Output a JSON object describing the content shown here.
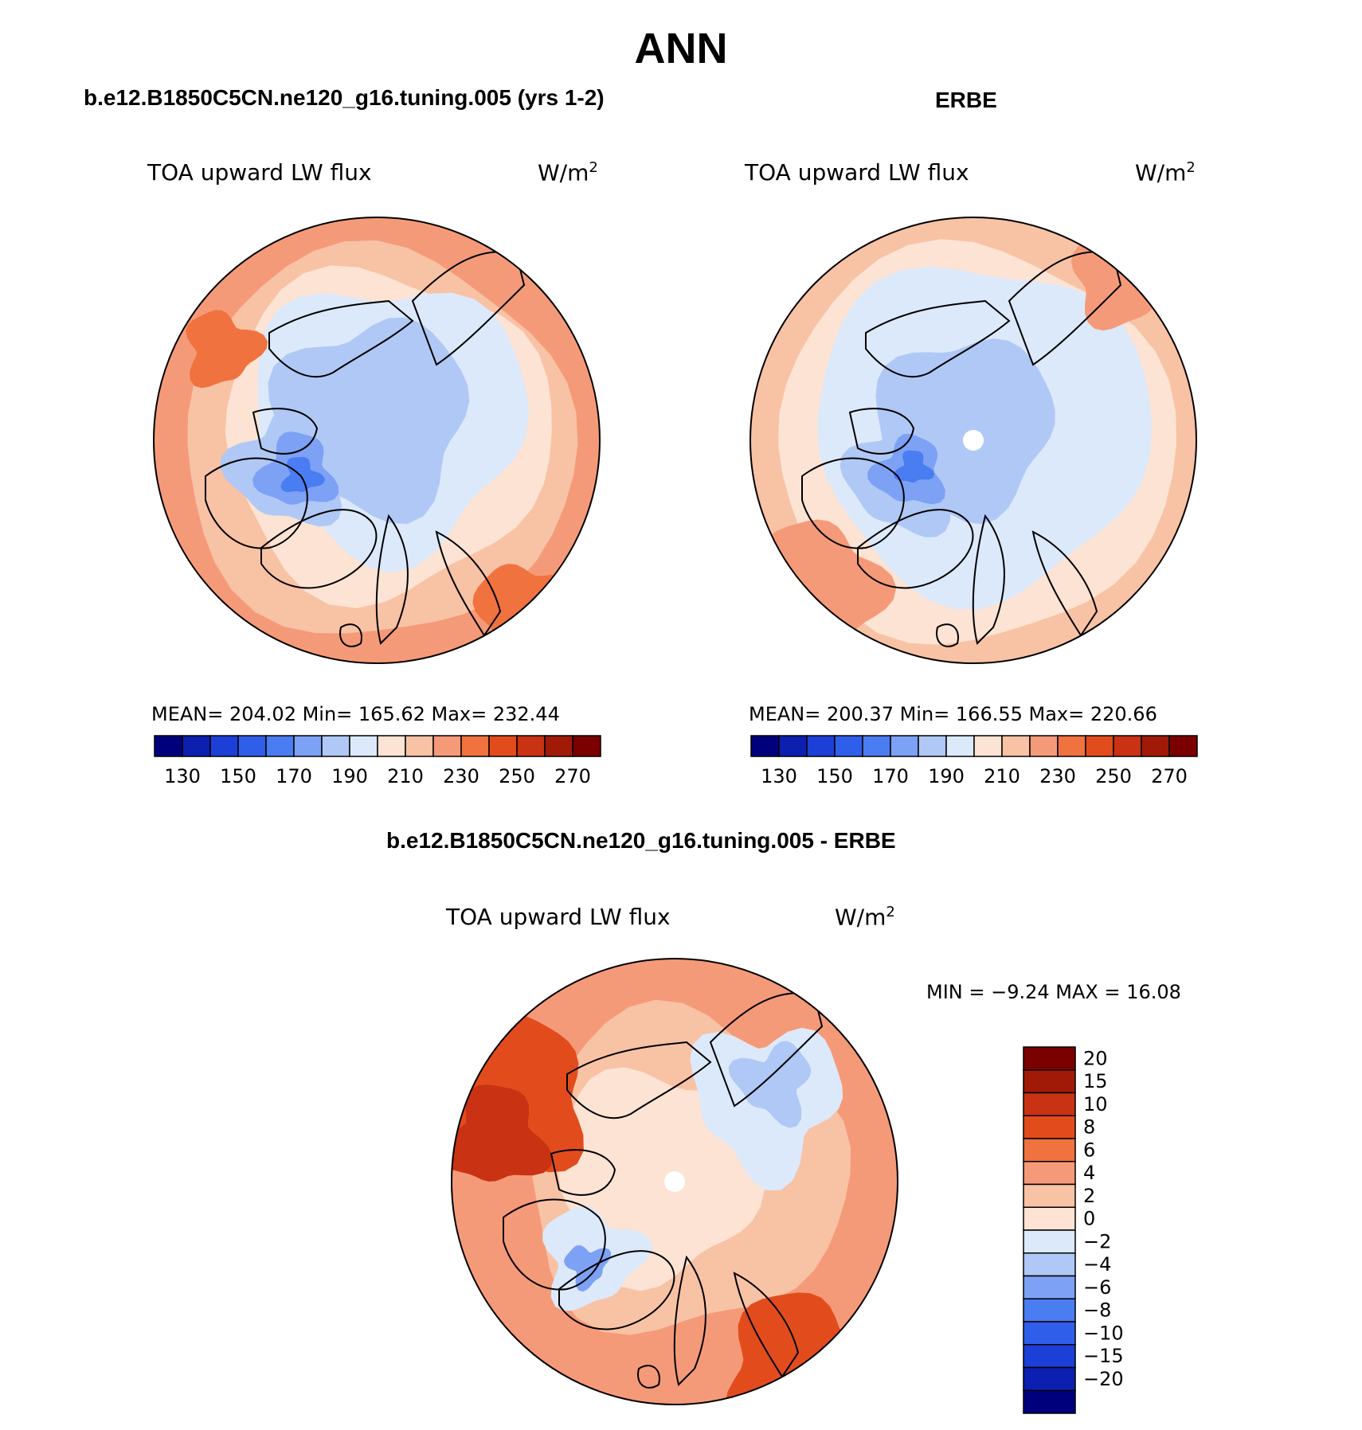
{
  "title": "ANN",
  "panels": [
    {
      "title": "b.e12.B1850C5CN.ne120_g16.tuning.005 (yrs 1-2)",
      "variable": "TOA upward LW flux",
      "units": "W/m",
      "units_sup": "2",
      "stats_text": "MEAN= 204.02   Min= 165.62   Max= 232.44"
    },
    {
      "title": "ERBE",
      "variable": "TOA upward LW flux",
      "units": "W/m",
      "units_sup": "2",
      "stats_text": "MEAN= 200.37   Min= 166.55   Max= 220.66"
    },
    {
      "title": "b.e12.B1850C5CN.ne120_g16.tuning.005 - ERBE",
      "variable": "TOA upward LW flux",
      "units": "W/m",
      "units_sup": "2",
      "stats_text": "MIN =   −9.24 MAX =   16.08"
    }
  ],
  "chart_data": [
    {
      "type": "polar-contour-map",
      "title": "b.e12.B1850C5CN.ne120_g16.tuning.005 (yrs 1-2)",
      "variable": "TOA upward LW flux",
      "units": "W/m2",
      "stats": {
        "mean": 204.02,
        "min": 165.62,
        "max": 232.44
      },
      "colorbar": {
        "orientation": "horizontal",
        "levels": [
          130,
          140,
          150,
          160,
          170,
          180,
          190,
          200,
          210,
          220,
          230,
          240,
          250,
          260,
          270
        ],
        "tick_labels": [
          "130",
          "150",
          "170",
          "190",
          "210",
          "230",
          "250",
          "270"
        ],
        "colors": [
          "#00007d",
          "#0d1fb0",
          "#1c3fd8",
          "#2f5fea",
          "#4a7cf2",
          "#7da1f5",
          "#b0c8f5",
          "#dce9fb",
          "#fce3d3",
          "#f8c2a5",
          "#f59a78",
          "#f0723f",
          "#e24c1d",
          "#c93212",
          "#a11a08",
          "#7b0000"
        ]
      }
    },
    {
      "type": "polar-contour-map",
      "title": "ERBE",
      "variable": "TOA upward LW flux",
      "units": "W/m2",
      "stats": {
        "mean": 200.37,
        "min": 166.55,
        "max": 220.66
      },
      "colorbar": {
        "orientation": "horizontal",
        "levels": [
          130,
          140,
          150,
          160,
          170,
          180,
          190,
          200,
          210,
          220,
          230,
          240,
          250,
          260,
          270
        ],
        "tick_labels": [
          "130",
          "150",
          "170",
          "190",
          "210",
          "230",
          "250",
          "270"
        ],
        "colors": [
          "#00007d",
          "#0d1fb0",
          "#1c3fd8",
          "#2f5fea",
          "#4a7cf2",
          "#7da1f5",
          "#b0c8f5",
          "#dce9fb",
          "#fce3d3",
          "#f8c2a5",
          "#f59a78",
          "#f0723f",
          "#e24c1d",
          "#c93212",
          "#a11a08",
          "#7b0000"
        ]
      }
    },
    {
      "type": "polar-contour-map",
      "title": "b.e12.B1850C5CN.ne120_g16.tuning.005 - ERBE",
      "variable": "TOA upward LW flux",
      "units": "W/m2",
      "stats": {
        "min": -9.24,
        "max": 16.08
      },
      "colorbar": {
        "orientation": "vertical",
        "tick_labels": [
          "20",
          "15",
          "10",
          "8",
          "6",
          "4",
          "2",
          "0",
          "−2",
          "−4",
          "−6",
          "−8",
          "−10",
          "−15",
          "−20"
        ],
        "colors": [
          "#7b0000",
          "#a11a08",
          "#c93212",
          "#e24c1d",
          "#f0723f",
          "#f59a78",
          "#f8c2a5",
          "#fce3d3",
          "#dce9fb",
          "#b0c8f5",
          "#7da1f5",
          "#4a7cf2",
          "#2f5fea",
          "#1c3fd8",
          "#0d1fb0",
          "#00007d"
        ]
      }
    }
  ]
}
